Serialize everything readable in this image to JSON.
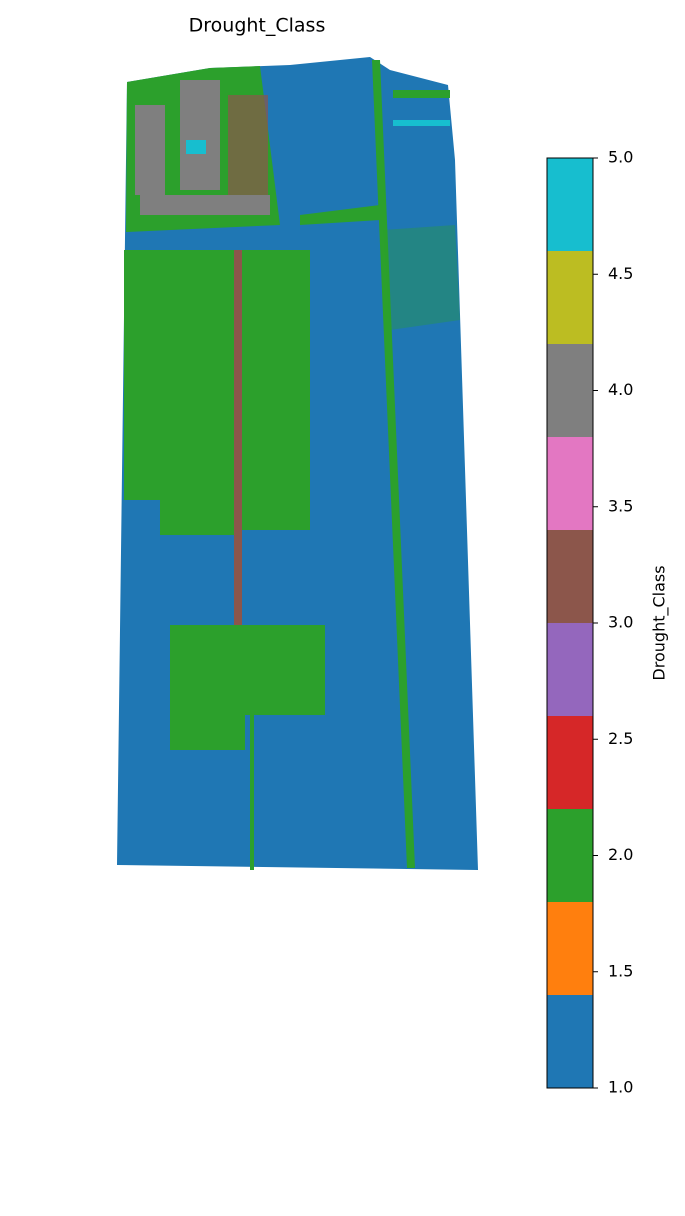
{
  "title": "Drought_Class",
  "colorbar": {
    "label": "Drought_Class",
    "lim": [
      1,
      5
    ],
    "ticks": [
      {
        "value": 1,
        "label": "1.0"
      },
      1.5,
      {
        "value": 2,
        "label": "2.0"
      },
      2.5,
      {
        "value": 3,
        "label": "3.0"
      },
      3.5,
      {
        "value": 4,
        "label": "4.0"
      },
      4.5,
      {
        "value": 5,
        "label": "5.0"
      }
    ],
    "colors": [
      "#1f77b4",
      "#ff7f0e",
      "#2ca02c",
      "#d62728",
      "#9467bd",
      "#8c564b",
      "#e377c2",
      "#7f7f7f",
      "#bcbd22",
      "#17becf"
    ]
  }
}
